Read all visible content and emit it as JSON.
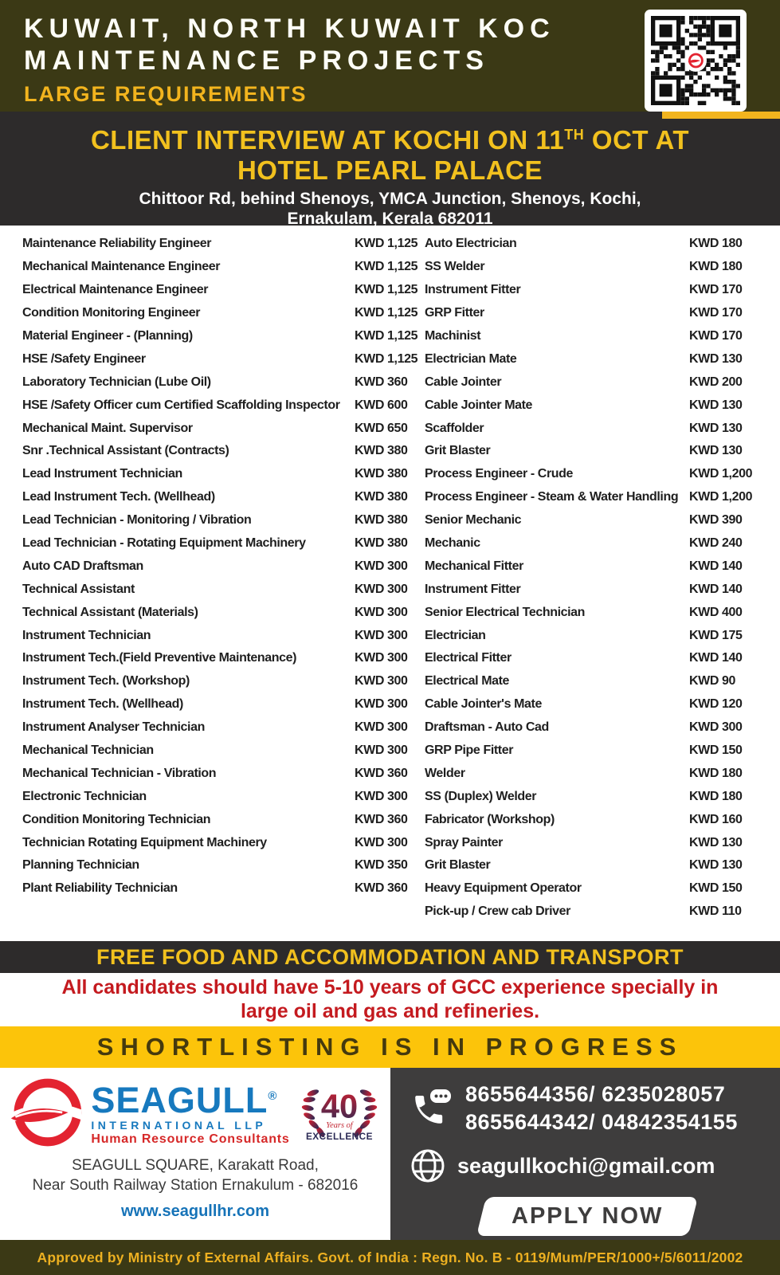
{
  "header": {
    "title_line1": "KUWAIT, NORTH KUWAIT KOC",
    "title_line2": "MAINTENANCE PROJECTS",
    "subtitle": "LARGE REQUIREMENTS"
  },
  "interview": {
    "line1_pre": "CLIENT INTERVIEW AT KOCHI ON 11",
    "line1_sup": "TH",
    "line1_post": " OCT AT",
    "line2": "HOTEL PEARL PALACE",
    "address_line1": "Chittoor Rd, behind Shenoys, YMCA Junction, Shenoys, Kochi,",
    "address_line2": "Ernakulam, Kerala 682011"
  },
  "jobs": {
    "left": [
      {
        "title": "Maintenance Reliability Engineer",
        "salary": "KWD 1,125"
      },
      {
        "title": "Mechanical Maintenance Engineer",
        "salary": "KWD 1,125"
      },
      {
        "title": "Electrical Maintenance Engineer",
        "salary": "KWD 1,125"
      },
      {
        "title": "Condition Monitoring Engineer",
        "salary": "KWD 1,125"
      },
      {
        "title": "Material Engineer - (Planning)",
        "salary": "KWD 1,125"
      },
      {
        "title": "HSE /Safety Engineer",
        "salary": "KWD 1,125"
      },
      {
        "title": "Laboratory Technician (Lube Oil)",
        "salary": "KWD 360"
      },
      {
        "title": "HSE /Safety Officer cum Certified Scaffolding Inspector",
        "salary": "KWD 600"
      },
      {
        "title": "Mechanical Maint.  Supervisor",
        "salary": "KWD 650"
      },
      {
        "title": "Snr .Technical Assistant (Contracts)",
        "salary": "KWD 380"
      },
      {
        "title": "Lead Instrument Technician",
        "salary": "KWD 380"
      },
      {
        "title": "Lead Instrument Tech. (Wellhead)",
        "salary": "KWD 380"
      },
      {
        "title": "Lead Technician - Monitoring / Vibration",
        "salary": "KWD 380"
      },
      {
        "title": "Lead Technician - Rotating Equipment Machinery",
        "salary": "KWD 380"
      },
      {
        "title": "Auto CAD Draftsman",
        "salary": "KWD 300"
      },
      {
        "title": "Technical Assistant",
        "salary": "KWD 300"
      },
      {
        "title": "Technical Assistant (Materials)",
        "salary": "KWD 300"
      },
      {
        "title": "Instrument Technician",
        "salary": "KWD 300"
      },
      {
        "title": "Instrument Tech.(Field Preventive Maintenance)",
        "salary": "KWD 300"
      },
      {
        "title": "Instrument Tech. (Workshop)",
        "salary": "KWD 300"
      },
      {
        "title": "Instrument Tech. (Wellhead)",
        "salary": "KWD 300"
      },
      {
        "title": "Instrument Analyser Technician",
        "salary": "KWD 300"
      },
      {
        "title": "Mechanical Technician",
        "salary": "KWD 300"
      },
      {
        "title": "Mechanical Technician - Vibration",
        "salary": "KWD 360"
      },
      {
        "title": "Electronic Technician",
        "salary": "KWD 300"
      },
      {
        "title": "Condition Monitoring Technician",
        "salary": "KWD 360"
      },
      {
        "title": "Technician Rotating Equipment Machinery",
        "salary": "KWD 300"
      },
      {
        "title": "Planning Technician",
        "salary": "KWD 350"
      },
      {
        "title": "Plant Reliability Technician",
        "salary": "KWD 360"
      }
    ],
    "right": [
      {
        "title": "Auto Electrician",
        "salary": "KWD 180"
      },
      {
        "title": "SS Welder",
        "salary": "KWD 180"
      },
      {
        "title": "Instrument Fitter",
        "salary": "KWD 170"
      },
      {
        "title": "GRP Fitter",
        "salary": "KWD 170"
      },
      {
        "title": "Machinist",
        "salary": "KWD 170"
      },
      {
        "title": "Electrician Mate",
        "salary": "KWD 130"
      },
      {
        "title": "Cable Jointer",
        "salary": "KWD 200"
      },
      {
        "title": "Cable Jointer Mate",
        "salary": "KWD 130"
      },
      {
        "title": "Scaffolder",
        "salary": "KWD 130"
      },
      {
        "title": "Grit Blaster",
        "salary": "KWD 130"
      },
      {
        "title": "Process Engineer - Crude",
        "salary": "KWD 1,200"
      },
      {
        "title": "Process Engineer - Steam & Water Handling",
        "salary": "KWD 1,200"
      },
      {
        "title": "Senior Mechanic",
        "salary": "KWD 390"
      },
      {
        "title": "Mechanic",
        "salary": "KWD 240"
      },
      {
        "title": "Mechanical Fitter",
        "salary": "KWD 140"
      },
      {
        "title": "Instrument Fitter",
        "salary": "KWD 140"
      },
      {
        "title": "Senior Electrical Technician",
        "salary": "KWD 400"
      },
      {
        "title": "Electrician",
        "salary": "KWD 175"
      },
      {
        "title": "Electrical Fitter",
        "salary": "KWD 140"
      },
      {
        "title": "Electrical Mate",
        "salary": "KWD 90"
      },
      {
        "title": "Cable Jointer's Mate",
        "salary": "KWD 120"
      },
      {
        "title": "Draftsman - Auto Cad",
        "salary": "KWD 300"
      },
      {
        "title": "GRP Pipe Fitter",
        "salary": "KWD 150"
      },
      {
        "title": "Welder",
        "salary": "KWD 180"
      },
      {
        "title": "SS (Duplex) Welder",
        "salary": "KWD 180"
      },
      {
        "title": "Fabricator (Workshop)",
        "salary": "KWD 160"
      },
      {
        "title": "Spray Painter",
        "salary": "KWD 130"
      },
      {
        "title": "Grit Blaster",
        "salary": "KWD 130"
      },
      {
        "title": "Heavy Equipment Operator",
        "salary": "KWD 150"
      },
      {
        "title": "Pick-up / Crew cab Driver",
        "salary": "KWD 110"
      }
    ]
  },
  "perks_banner": "FREE FOOD AND ACCOMMODATION AND TRANSPORT",
  "experience_note": {
    "line1": "All candidates should have 5-10 years of GCC experience specially in",
    "line2": "large oil and gas and refineries."
  },
  "shortlisting_banner": "SHORTLISTING IS IN PROGRESS",
  "footer": {
    "company": {
      "name": "SEAGULL",
      "reg_mark": "®",
      "line2": "INTERNATIONAL LLP",
      "line3": "Human Resource Consultants"
    },
    "badge": {
      "number": "40",
      "years_of": "Years of",
      "excellence": "EXCELLENCE"
    },
    "address_line1": "SEAGULL SQUARE, Karakatt Road,",
    "address_line2": "Near South Railway Station Ernakulum - 682016",
    "website": "www.seagullhr.com",
    "phones_line1": "8655644356/ 6235028057",
    "phones_line2": "8655644342/ 04842354155",
    "email": "seagullkochi@gmail.com",
    "apply_label": "APPLY NOW"
  },
  "approval_strip": "Approved by Ministry of External Affairs. Govt. of India : Regn. No. B - 0119/Mum/PER/1000+/5/6011/2002",
  "colors": {
    "header_olive": "#3B3915",
    "band_dark": "#2D2B2B",
    "accent_yellow": "#F2C11E",
    "shortlist_yellow": "#FCC40A",
    "note_red": "#C41A1F",
    "brand_blue": "#1779BE",
    "logo_red": "#E32330",
    "footer_dark": "#3E3D3D"
  }
}
